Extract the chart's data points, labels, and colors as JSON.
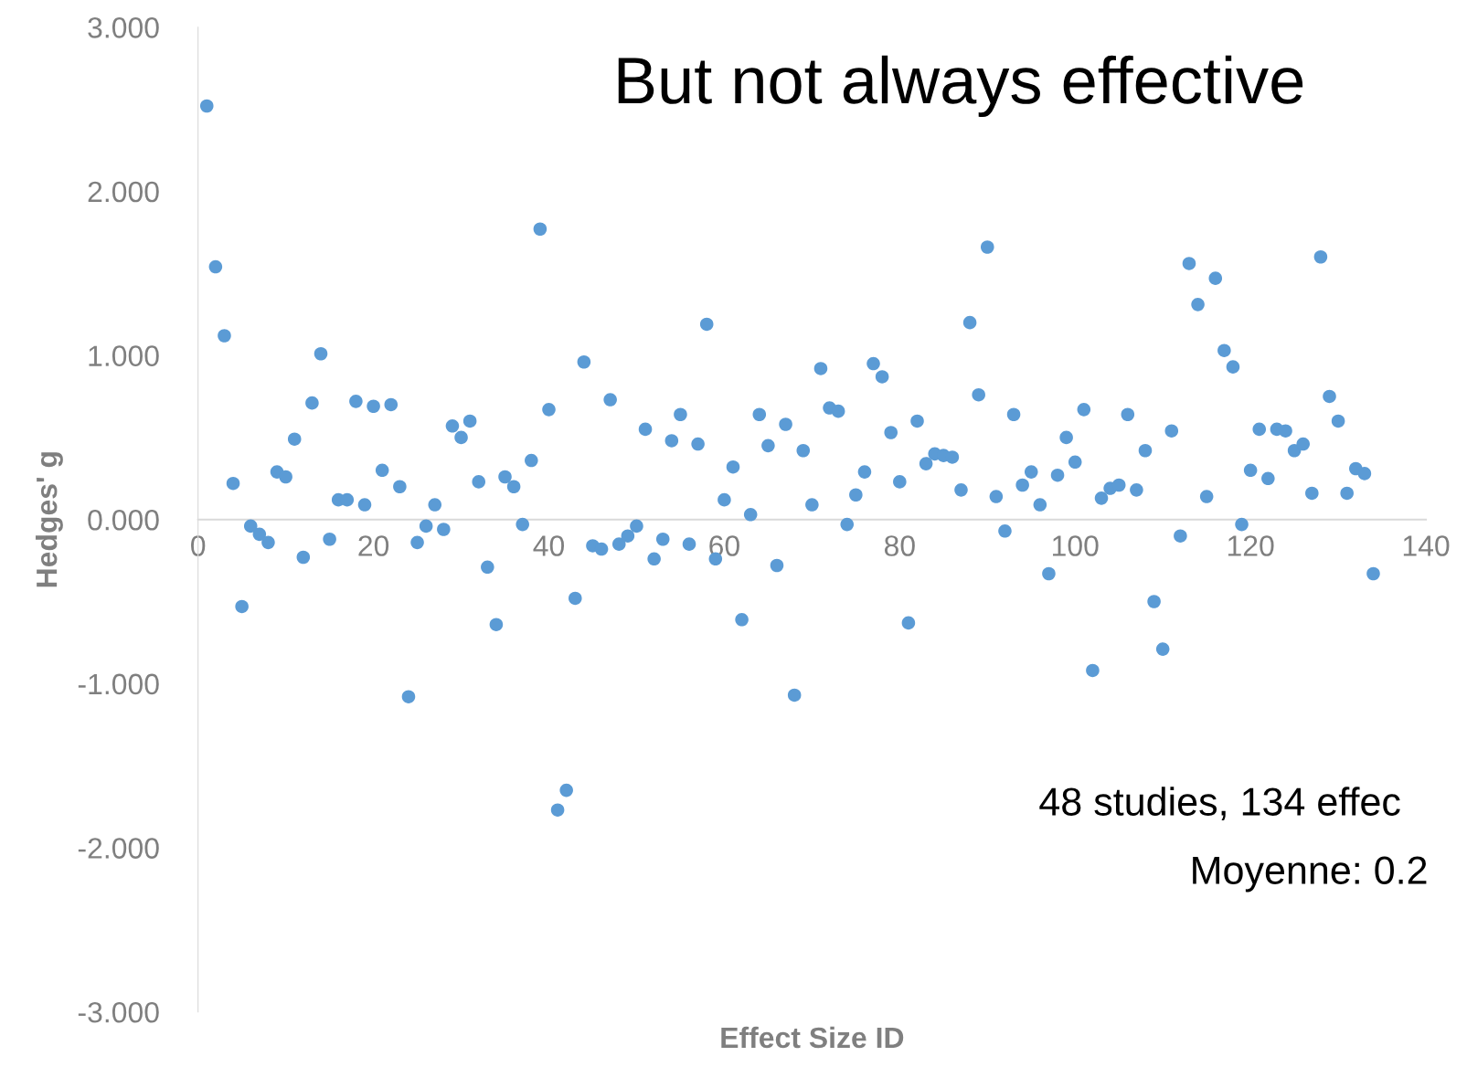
{
  "chart_data": {
    "type": "scatter",
    "title": "But not always effective",
    "xlabel": "Effect Size ID",
    "ylabel": "Hedges' g",
    "annotations": [
      "48 studies, 134 effec",
      "Moyenne: 0.2"
    ],
    "x": [
      1,
      2,
      3,
      4,
      5,
      6,
      7,
      8,
      9,
      10,
      11,
      12,
      13,
      14,
      15,
      16,
      17,
      18,
      19,
      20,
      21,
      22,
      23,
      24,
      25,
      26,
      27,
      28,
      29,
      30,
      31,
      32,
      33,
      34,
      35,
      36,
      37,
      38,
      39,
      40,
      41,
      42,
      43,
      44,
      45,
      46,
      47,
      48,
      49,
      50,
      51,
      52,
      53,
      54,
      55,
      56,
      57,
      58,
      59,
      60,
      61,
      62,
      63,
      64,
      65,
      66,
      67,
      68,
      69,
      70,
      71,
      72,
      73,
      74,
      75,
      76,
      77,
      78,
      79,
      80,
      81,
      82,
      83,
      84,
      85,
      86,
      87,
      88,
      89,
      90,
      91,
      92,
      93,
      94,
      95,
      96,
      97,
      98,
      99,
      100,
      101,
      102,
      103,
      104,
      105,
      106,
      107,
      108,
      109,
      110,
      111,
      112,
      113,
      114,
      115,
      116,
      117,
      118,
      119,
      120,
      121,
      122,
      123,
      124,
      125,
      126,
      127,
      128,
      129,
      130,
      131,
      132,
      133,
      134
    ],
    "series": [
      {
        "color": "#5b9bd5",
        "values": [
          2.52,
          1.54,
          1.12,
          0.22,
          -0.53,
          -0.04,
          -0.09,
          -0.14,
          0.29,
          0.26,
          0.49,
          -0.23,
          0.71,
          1.01,
          -0.12,
          0.12,
          0.12,
          0.72,
          0.09,
          0.69,
          0.3,
          0.7,
          0.2,
          -1.08,
          -0.14,
          -0.04,
          0.09,
          -0.06,
          0.57,
          0.5,
          0.6,
          0.23,
          -0.29,
          -0.64,
          0.26,
          0.2,
          -0.03,
          0.36,
          1.77,
          0.67,
          -1.77,
          -1.65,
          -0.48,
          0.96,
          -0.16,
          -0.18,
          0.73,
          -0.15,
          -0.1,
          -0.04,
          0.55,
          -0.24,
          -0.12,
          0.48,
          0.64,
          -0.15,
          0.46,
          1.19,
          -0.24,
          0.12,
          0.32,
          -0.61,
          0.03,
          0.64,
          0.45,
          -0.28,
          0.58,
          -1.07,
          0.42,
          0.09,
          0.92,
          0.68,
          0.66,
          -0.03,
          0.15,
          0.29,
          0.95,
          0.87,
          0.53,
          0.23,
          -0.63,
          0.6,
          0.34,
          0.4,
          0.39,
          0.38,
          0.18,
          1.2,
          0.76,
          1.66,
          0.14,
          -0.07,
          0.64,
          0.21,
          0.29,
          0.09,
          -0.33,
          0.27,
          0.5,
          0.35,
          0.67,
          -0.92,
          0.13,
          0.19,
          0.21,
          0.64,
          0.18,
          0.42,
          -0.5,
          -0.79,
          0.54,
          -0.1,
          1.56,
          1.31,
          0.14,
          1.47,
          1.03,
          0.93,
          -0.03,
          0.3,
          0.55,
          0.25,
          0.55,
          0.54,
          0.42,
          0.46,
          0.16,
          1.6,
          0.75,
          0.6,
          0.16,
          0.31,
          0.28,
          -0.33
        ]
      }
    ],
    "xlim": [
      0,
      140
    ],
    "xticks": [
      0,
      20,
      40,
      60,
      80,
      100,
      120,
      140
    ],
    "ylim": [
      -3,
      3
    ],
    "yticks": [
      {
        "value": -3,
        "label": "-3.000"
      },
      {
        "value": -2,
        "label": "-2.000"
      },
      {
        "value": -1,
        "label": "-1.000"
      },
      {
        "value": 0,
        "label": "0.000"
      },
      {
        "value": 1,
        "label": "1.000"
      },
      {
        "value": 2,
        "label": "2.000"
      },
      {
        "value": 3,
        "label": "3.000"
      }
    ],
    "marker": "circle",
    "grid": false,
    "legend": false
  }
}
